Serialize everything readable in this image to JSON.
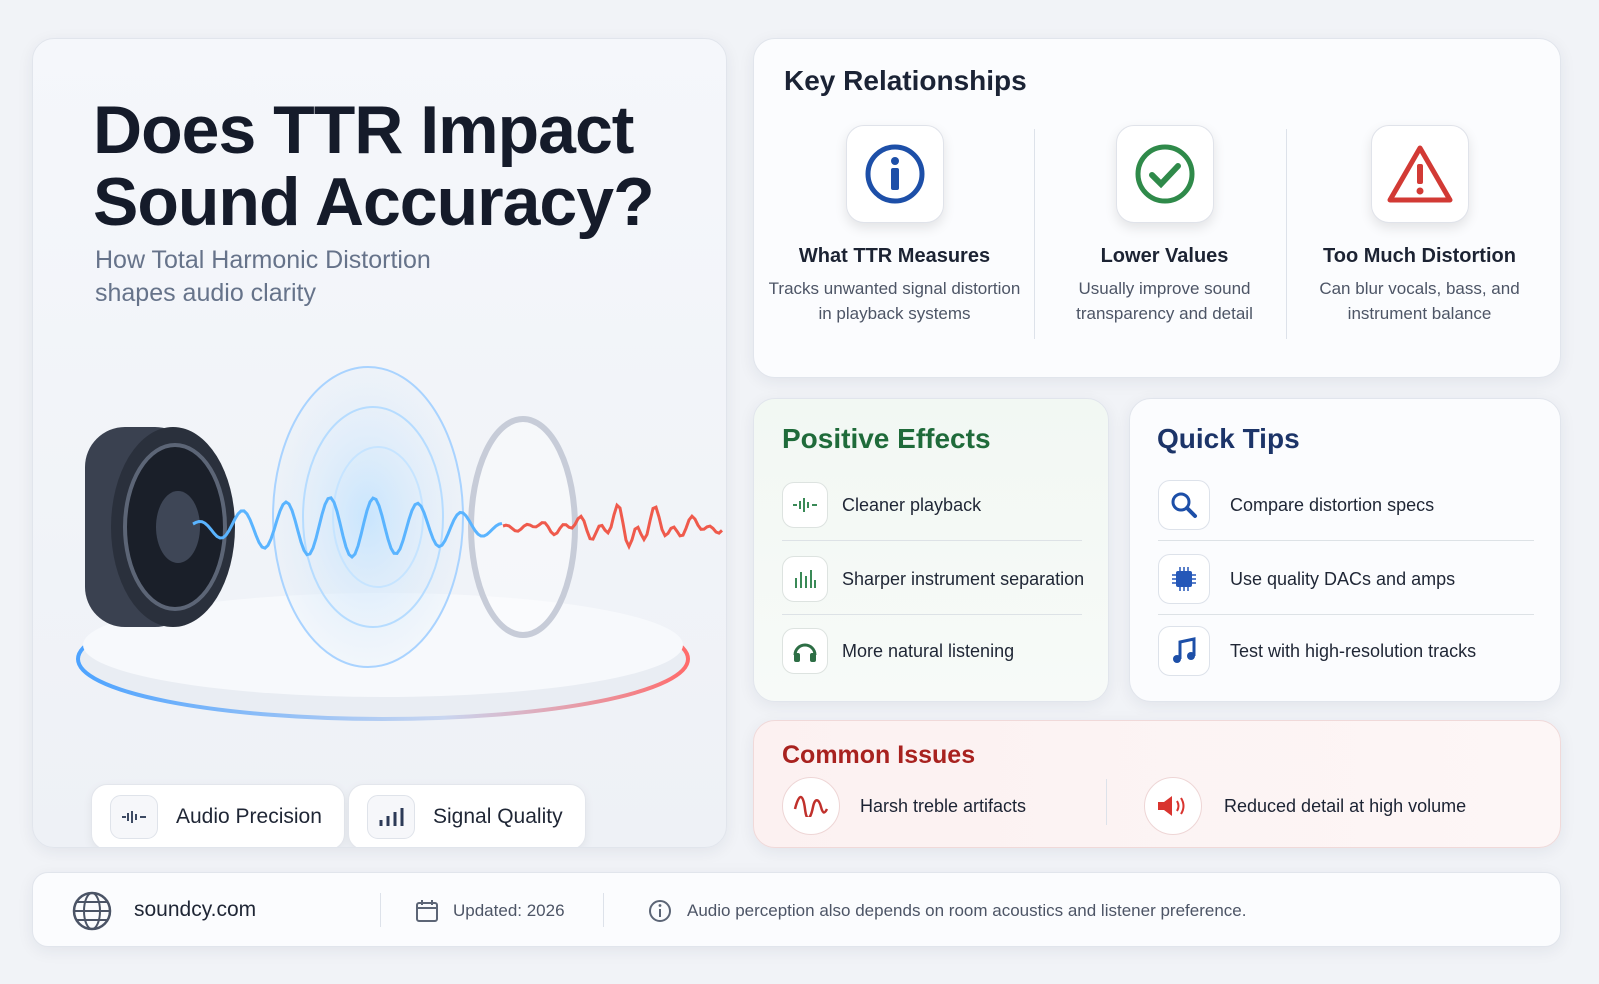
{
  "header": {
    "title": "Does TTR Impact Sound Accuracy?",
    "subtitle": "How Total Harmonic Distortion shapes audio clarity",
    "badges": [
      "Audio Precision",
      "Signal Quality"
    ]
  },
  "key_relationships": {
    "title": "Key Relationships",
    "items": [
      {
        "title": "What TTR Measures",
        "text": "Tracks unwanted signal distortion in playback systems"
      },
      {
        "title": "Lower Values",
        "text": "Usually improve sound transparency and detail"
      },
      {
        "title": "Too Much Distortion",
        "text": "Can blur vocals, bass, and instrument balance"
      }
    ]
  },
  "positive_effects": {
    "title": "Positive Effects",
    "items": [
      "Cleaner playback",
      "Sharper instrument separation",
      "More natural listening"
    ]
  },
  "quick_tips": {
    "title": "Quick Tips",
    "items": [
      "Compare distortion specs",
      "Use quality DACs and amps",
      "Test with high-resolution tracks"
    ]
  },
  "common_issues": {
    "title": "Common Issues",
    "items": [
      "Harsh treble artifacts",
      "Reduced detail at high volume"
    ]
  },
  "footer": {
    "website": "soundcy.com",
    "updated": "Updated: 2026",
    "note": "Audio perception also depends on room acoustics and listener preference."
  }
}
